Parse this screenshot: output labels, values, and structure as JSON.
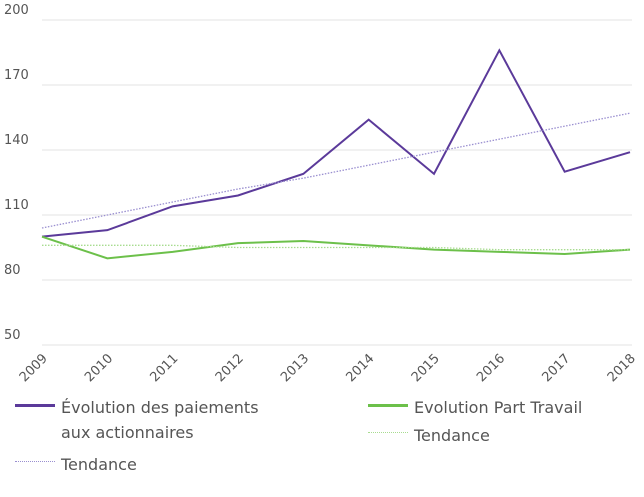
{
  "chart_data": {
    "type": "line",
    "x": [
      2009,
      2010,
      2011,
      2012,
      2013,
      2014,
      2015,
      2016,
      2017,
      2018
    ],
    "xlim": [
      2009,
      2018
    ],
    "xticks": [
      2009,
      2010,
      2011,
      2012,
      2013,
      2014,
      2015,
      2016,
      2017,
      2018
    ],
    "ylim": [
      50,
      200
    ],
    "yticks": [
      50,
      80,
      110,
      140,
      170,
      200
    ],
    "grid": true,
    "series": [
      {
        "name": "Évolution des paiements aux actionnaires",
        "color": "#5b3a9a",
        "style": "solid",
        "values": [
          100,
          103,
          114,
          119,
          129,
          154,
          129,
          186,
          130,
          139
        ]
      },
      {
        "name": "Tendance",
        "color": "#9a8fd0",
        "style": "dotted",
        "values": [
          104,
          110,
          116,
          122,
          127,
          133,
          139,
          145,
          151,
          157
        ]
      },
      {
        "name": "Evolution Part Travail",
        "color": "#6cc04a",
        "style": "solid",
        "values": [
          100,
          90,
          93,
          97,
          98,
          96,
          94,
          93,
          92,
          94
        ]
      },
      {
        "name": "Tendance",
        "color": "#a8dc90",
        "style": "dotted",
        "values": [
          96,
          96,
          96,
          95,
          95,
          95,
          95,
          94,
          94,
          94
        ]
      }
    ]
  }
}
